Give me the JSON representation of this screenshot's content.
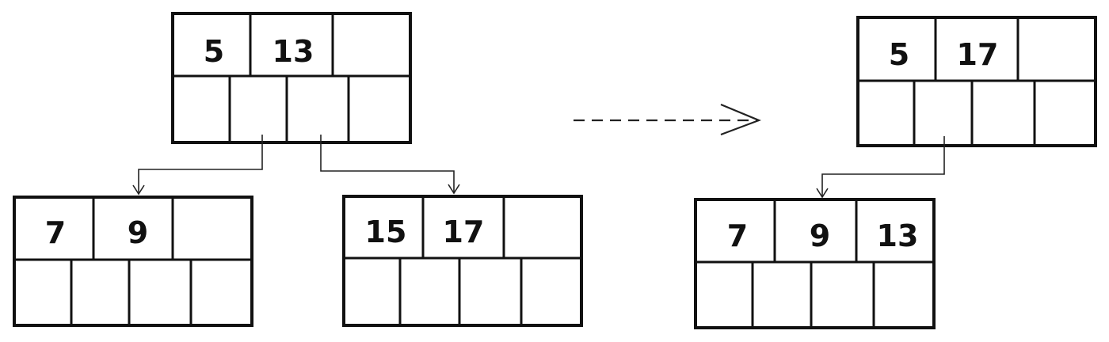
{
  "before": {
    "root": {
      "keys": [
        "5",
        "13",
        ""
      ]
    },
    "left_child": {
      "keys": [
        "7",
        "9",
        ""
      ]
    },
    "right_child": {
      "keys": [
        "15",
        "17",
        ""
      ]
    }
  },
  "after": {
    "root": {
      "keys": [
        "5",
        "17",
        ""
      ]
    },
    "child": {
      "keys": [
        "7",
        "9",
        "13"
      ]
    }
  },
  "colors": {
    "stroke": "#111111",
    "background": "#ffffff"
  }
}
